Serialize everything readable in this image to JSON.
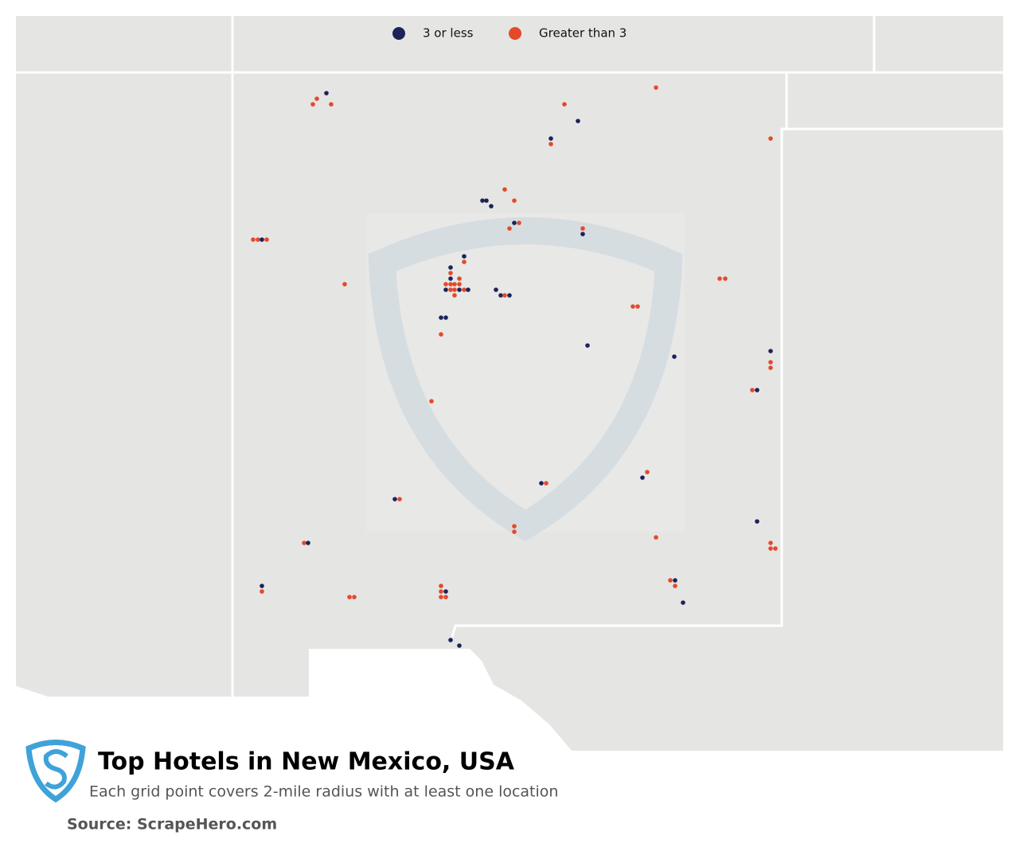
{
  "legend": {
    "items": [
      {
        "label": "3 or less",
        "color": "#1b2358"
      },
      {
        "label": "Greater than 3",
        "color": "#e5492a"
      }
    ]
  },
  "footer": {
    "title": "Top Hotels in New Mexico, USA",
    "subtitle": "Each grid point covers 2-mile radius with at least one location",
    "source": "Source: ScrapeHero.com"
  }
}
